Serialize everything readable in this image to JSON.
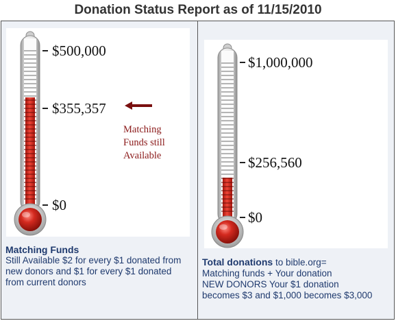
{
  "title": "Donation Status Report as of 11/15/2010",
  "left_panel": {
    "top_value": "$500,000",
    "mid_value": "$355,357",
    "bottom_value": "$0",
    "fill_fraction": 0.71,
    "note_lines": [
      "Matching",
      "Funds still",
      "Available"
    ],
    "caption_title": "Matching Funds",
    "caption_lines": [
      "Still Available $2 for every $1 donated from",
      "new donors and $1 for every $1 donated",
      "from current donors"
    ]
  },
  "right_panel": {
    "top_value": "$1,000,000",
    "mid_value": "$256,560",
    "bottom_value": "$0",
    "fill_fraction": 0.2566,
    "caption_title": "Total donations",
    "caption_title_rest": " to bible.org=",
    "caption_lines": [
      "Matching funds + Your donation",
      "NEW DONORS Your $1 donation",
      "becomes $3 and $1,000 becomes $3,000"
    ]
  },
  "colors": {
    "mercury": "#d42a1f",
    "caption_text": "#1f3a6e",
    "note_text": "#8b1a1a",
    "arrow": "#7a1010"
  }
}
